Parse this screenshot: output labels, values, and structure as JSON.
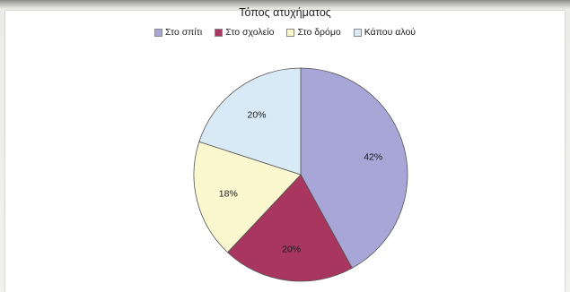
{
  "chart_data": {
    "type": "pie",
    "title": "Τόπος ατυχήματος",
    "categories": [
      "Στο σπίτι",
      "Στο σχολείο",
      "Στο δρόμο",
      "Κάπου αλού"
    ],
    "values": [
      42,
      20,
      18,
      20
    ],
    "labels": [
      "42%",
      "20%",
      "18%",
      "20%"
    ],
    "colors": [
      "#a8a6d6",
      "#a8365f",
      "#fbf7cf",
      "#d8eaf5"
    ],
    "legend_position": "top"
  }
}
